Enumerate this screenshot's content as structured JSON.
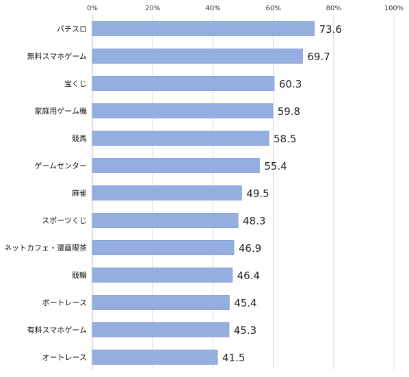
{
  "chart_data": {
    "type": "bar",
    "orientation": "horizontal",
    "categories": [
      "パチスロ",
      "無料スマホゲーム",
      "宝くじ",
      "家庭用ゲーム機",
      "競馬",
      "ゲームセンター",
      "麻雀",
      "スポーツくじ",
      "ネットカフェ・漫画喫茶",
      "競輪",
      "ボートレース",
      "有料スマホゲーム",
      "オートレース"
    ],
    "values": [
      73.6,
      69.7,
      60.3,
      59.8,
      58.5,
      55.4,
      49.5,
      48.3,
      46.9,
      46.4,
      45.4,
      45.3,
      41.5
    ],
    "value_labels": [
      "73.6",
      "69.7",
      "60.3",
      "59.8",
      "58.5",
      "55.4",
      "49.5",
      "48.3",
      "46.9",
      "46.4",
      "45.4",
      "45.3",
      "41.5"
    ],
    "xlim": [
      0,
      100
    ],
    "ticks": [
      0,
      20,
      40,
      60,
      80,
      100
    ],
    "tick_labels": [
      "0%",
      "20%",
      "40%",
      "60%",
      "80%",
      "100%"
    ],
    "axis_position": "top",
    "grid": true,
    "title": "",
    "xlabel": "",
    "ylabel": "",
    "bar_color": "#95aee0"
  }
}
